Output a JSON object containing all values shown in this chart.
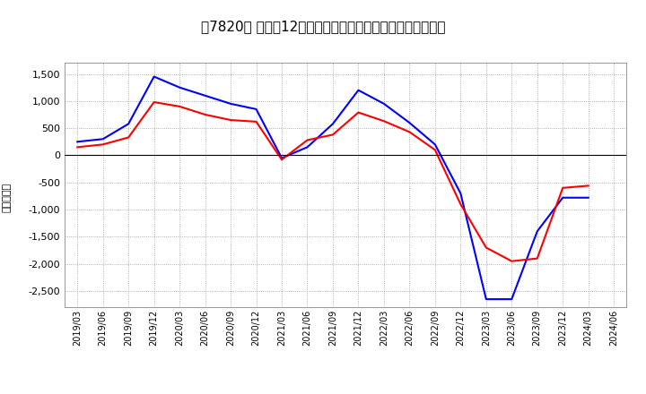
{
  "title": "［7820］ 利益の12か月移動合計の対前年同期増減額の推移",
  "ylabel": "（百万円）",
  "background_color": "#ffffff",
  "plot_bg_color": "#ffffff",
  "grid_color": "#999999",
  "dates": [
    "2019/03",
    "2019/06",
    "2019/09",
    "2019/12",
    "2020/03",
    "2020/06",
    "2020/09",
    "2020/12",
    "2021/03",
    "2021/06",
    "2021/09",
    "2021/12",
    "2022/03",
    "2022/06",
    "2022/09",
    "2022/12",
    "2023/03",
    "2023/06",
    "2023/09",
    "2023/12",
    "2024/03",
    "2024/06"
  ],
  "keijo_rieki": [
    250,
    300,
    580,
    1450,
    1250,
    1100,
    950,
    850,
    -50,
    150,
    580,
    1200,
    950,
    600,
    200,
    -700,
    -2650,
    -2650,
    -1400,
    -780,
    -780,
    null
  ],
  "touki_jun_rieki": [
    150,
    200,
    330,
    980,
    900,
    750,
    650,
    620,
    -80,
    280,
    380,
    790,
    630,
    430,
    100,
    -900,
    -1700,
    -1950,
    -1900,
    -600,
    -560,
    null
  ],
  "line_color_keijo": "#0000ff",
  "line_color_touki": "#ff0000",
  "ylim": [
    -2800,
    1700
  ],
  "yticks": [
    -2500,
    -2000,
    -1500,
    -1000,
    -500,
    0,
    500,
    1000,
    1500
  ],
  "title_fontsize": 11,
  "axis_fontsize": 8,
  "legend_fontsize": 9
}
